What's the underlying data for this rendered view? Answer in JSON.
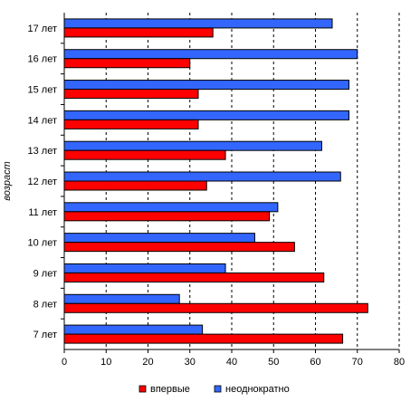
{
  "chart_data": {
    "type": "bar",
    "orientation": "horizontal",
    "title": "",
    "xlabel": "",
    "ylabel": "возраст",
    "xlim": [
      0,
      80
    ],
    "x_ticks": [
      0,
      10,
      20,
      30,
      40,
      50,
      60,
      70,
      80
    ],
    "grid": "vertical dashed lines",
    "legend_position": "bottom",
    "categories": [
      "7 лет",
      "8 лет",
      "9 лет",
      "10 лет",
      "11 лет",
      "12 лет",
      "13 лет",
      "14 лет",
      "15 лет",
      "16 лет",
      "17 лет"
    ],
    "series": [
      {
        "name": "впервые",
        "color": "#ff0000",
        "values": [
          66.5,
          72.5,
          62,
          55,
          49,
          34,
          38.5,
          32,
          32,
          30,
          35.5
        ]
      },
      {
        "name": "неоднократно",
        "color": "#3366ff",
        "values": [
          33,
          27.5,
          38.5,
          45.5,
          51,
          66,
          61.5,
          68,
          68,
          70,
          64
        ]
      }
    ]
  }
}
